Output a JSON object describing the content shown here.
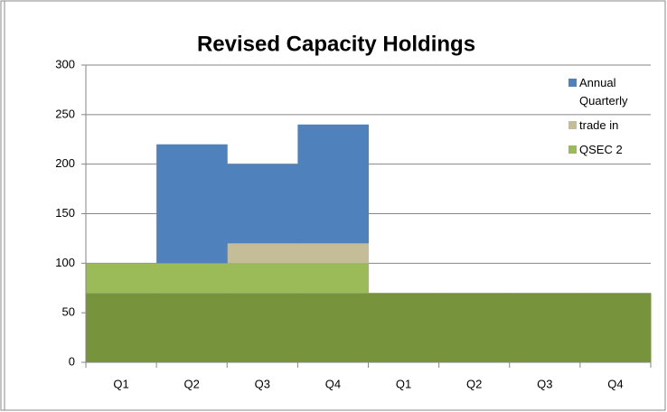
{
  "chart_data": {
    "type": "bar",
    "stacked": true,
    "title": "Revised Capacity Holdings",
    "categories": [
      "Q1",
      "Q2",
      "Q3",
      "Q4",
      "Q1",
      "Q2",
      "Q3",
      "Q4"
    ],
    "series": [
      {
        "color": "#77933c",
        "values": [
          70,
          70,
          70,
          70,
          70,
          70,
          70,
          70
        ]
      },
      {
        "name": "QSEC 2",
        "color": "#9bbb59",
        "values": [
          30,
          30,
          30,
          30,
          0,
          0,
          0,
          0
        ]
      },
      {
        "name": "trade in",
        "color": "#c4bd97",
        "values": [
          0,
          0,
          20,
          20,
          0,
          0,
          0,
          0
        ]
      },
      {
        "name": "Annual Quarterly",
        "color": "#4f81bd",
        "values": [
          0,
          120,
          80,
          120,
          0,
          0,
          0,
          0
        ]
      }
    ],
    "ylim": [
      0,
      300
    ],
    "yticks": [
      0,
      50,
      100,
      150,
      200,
      250,
      300
    ],
    "grid": true,
    "legend": "right"
  }
}
